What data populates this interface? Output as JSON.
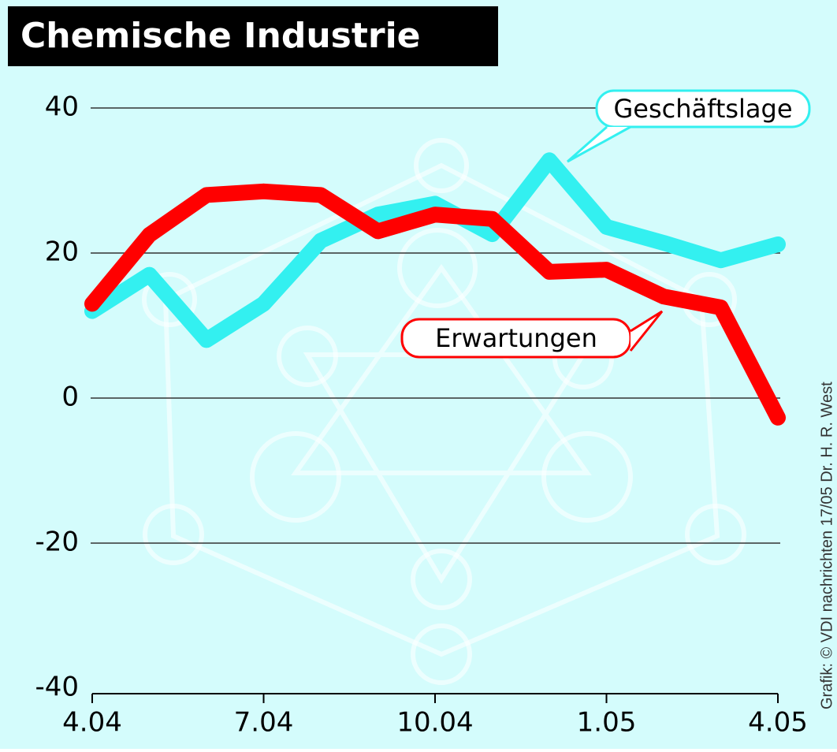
{
  "chart_data": {
    "type": "line",
    "title": "Chemische Industrie",
    "credit": "Grafik: © VDI nachrichten   17/05 Dr. H. R. West",
    "categories": [
      "4.04",
      null,
      null,
      "7.04",
      null,
      null,
      "10.04",
      null,
      null,
      "1.05",
      null,
      null,
      "4.05"
    ],
    "series": [
      {
        "name": "Geschäftslage",
        "color": "#33f0f0",
        "values": [
          12,
          17,
          8,
          13,
          21.7,
          25.3,
          26.8,
          22.6,
          32.8,
          23.6,
          21.4,
          19,
          21.2
        ]
      },
      {
        "name": "Erwartungen",
        "color": "#ff0000",
        "values": [
          13,
          22.5,
          28,
          28.5,
          28,
          23,
          25.3,
          24.7,
          17.4,
          17.7,
          14,
          12.5,
          -2.7
        ]
      }
    ],
    "ylim": [
      -40,
      40
    ],
    "yticks": [
      -40,
      -20,
      0,
      20,
      40
    ],
    "grid": true
  }
}
